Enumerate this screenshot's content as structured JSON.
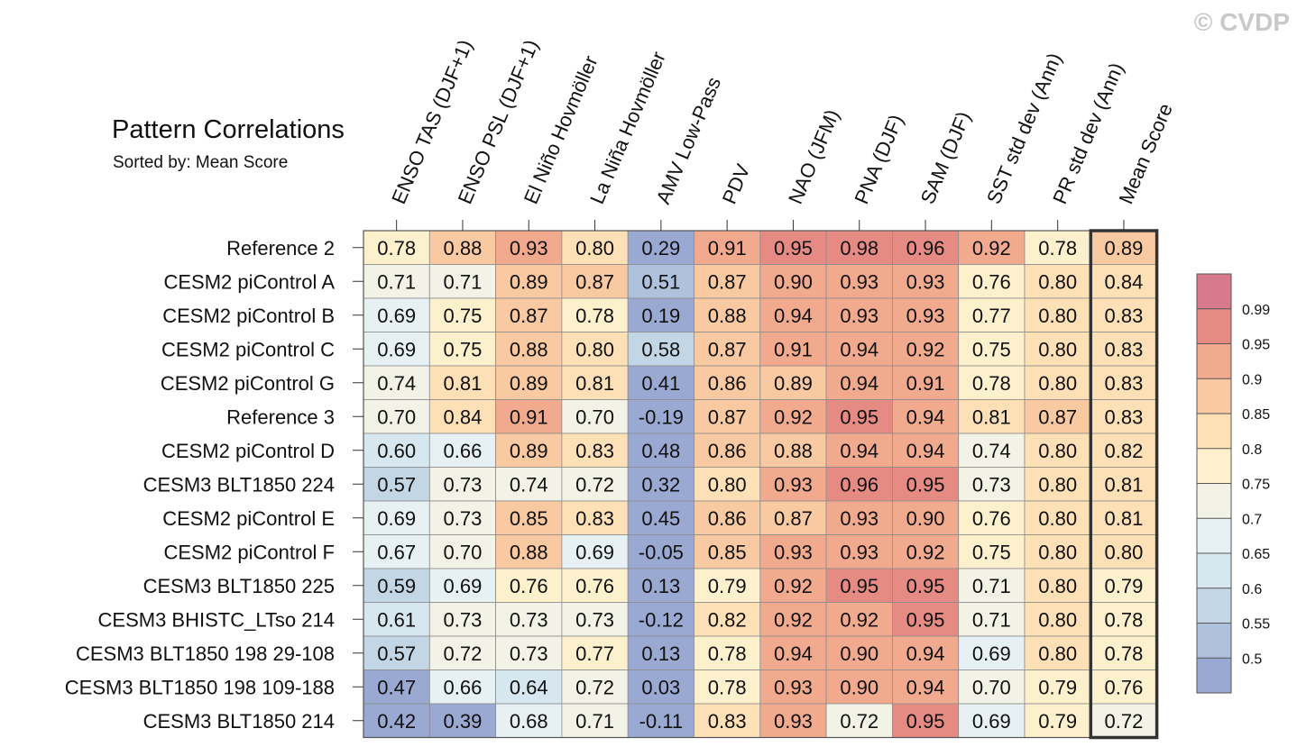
{
  "watermark": "© CVDP",
  "title": "Pattern Correlations",
  "subtitle": "Sorted by: Mean Score",
  "chart_data": {
    "type": "heatmap",
    "title": "Pattern Correlations",
    "subtitle": "Sorted by: Mean Score",
    "columns": [
      "ENSO TAS (DJF+1)",
      "ENSO PSL (DJF+1)",
      "El Niño Hovmöller",
      "La Niña Hovmöller",
      "AMV Low-Pass",
      "PDV",
      "NAO (JFM)",
      "PNA (DJF)",
      "SAM (DJF)",
      "SST std dev (Ann)",
      "PR std dev (Ann)",
      "Mean Score"
    ],
    "rows": [
      "Reference 2",
      "CESM2 piControl A",
      "CESM2 piControl B",
      "CESM2 piControl C",
      "CESM2 piControl G",
      "Reference 3",
      "CESM2 piControl D",
      "CESM3 BLT1850 224",
      "CESM2 piControl E",
      "CESM2 piControl F",
      "CESM3 BLT1850 225",
      "CESM3 BHISTC_LTso 214",
      "CESM3 BLT1850 198 29-108",
      "CESM3 BLT1850 198 109-188",
      "CESM3 BLT1850 214"
    ],
    "values": [
      [
        "0.78",
        "0.88",
        "0.93",
        "0.80",
        "0.29",
        "0.91",
        "0.95",
        "0.98",
        "0.96",
        "0.92",
        "0.78",
        "0.89"
      ],
      [
        "0.71",
        "0.71",
        "0.89",
        "0.87",
        "0.51",
        "0.87",
        "0.90",
        "0.93",
        "0.93",
        "0.76",
        "0.80",
        "0.84"
      ],
      [
        "0.69",
        "0.75",
        "0.87",
        "0.78",
        "0.19",
        "0.88",
        "0.94",
        "0.93",
        "0.93",
        "0.77",
        "0.80",
        "0.83"
      ],
      [
        "0.69",
        "0.75",
        "0.88",
        "0.80",
        "0.58",
        "0.87",
        "0.91",
        "0.94",
        "0.92",
        "0.75",
        "0.80",
        "0.83"
      ],
      [
        "0.74",
        "0.81",
        "0.89",
        "0.81",
        "0.41",
        "0.86",
        "0.89",
        "0.94",
        "0.91",
        "0.78",
        "0.80",
        "0.83"
      ],
      [
        "0.70",
        "0.84",
        "0.91",
        "0.70",
        "-0.19",
        "0.87",
        "0.92",
        "0.95",
        "0.94",
        "0.81",
        "0.87",
        "0.83"
      ],
      [
        "0.60",
        "0.66",
        "0.89",
        "0.83",
        "0.48",
        "0.86",
        "0.88",
        "0.94",
        "0.94",
        "0.74",
        "0.80",
        "0.82"
      ],
      [
        "0.57",
        "0.73",
        "0.74",
        "0.72",
        "0.32",
        "0.80",
        "0.93",
        "0.96",
        "0.95",
        "0.73",
        "0.80",
        "0.81"
      ],
      [
        "0.69",
        "0.73",
        "0.85",
        "0.83",
        "0.45",
        "0.86",
        "0.87",
        "0.93",
        "0.90",
        "0.76",
        "0.80",
        "0.81"
      ],
      [
        "0.67",
        "0.70",
        "0.88",
        "0.69",
        "-0.05",
        "0.85",
        "0.93",
        "0.93",
        "0.92",
        "0.75",
        "0.80",
        "0.80"
      ],
      [
        "0.59",
        "0.69",
        "0.76",
        "0.76",
        "0.13",
        "0.79",
        "0.92",
        "0.95",
        "0.95",
        "0.71",
        "0.80",
        "0.79"
      ],
      [
        "0.61",
        "0.73",
        "0.73",
        "0.73",
        "-0.12",
        "0.82",
        "0.92",
        "0.92",
        "0.95",
        "0.71",
        "0.80",
        "0.78"
      ],
      [
        "0.57",
        "0.72",
        "0.73",
        "0.77",
        "0.13",
        "0.78",
        "0.94",
        "0.90",
        "0.94",
        "0.69",
        "0.80",
        "0.78"
      ],
      [
        "0.47",
        "0.66",
        "0.64",
        "0.72",
        "0.03",
        "0.78",
        "0.93",
        "0.90",
        "0.94",
        "0.70",
        "0.79",
        "0.76"
      ],
      [
        "0.42",
        "0.39",
        "0.68",
        "0.71",
        "-0.11",
        "0.83",
        "0.93",
        "0.72",
        "0.95",
        "0.69",
        "0.79",
        "0.72"
      ]
    ],
    "colorbar": {
      "levels": [
        0.5,
        0.55,
        0.6,
        0.65,
        0.7,
        0.75,
        0.8,
        0.85,
        0.9,
        0.95,
        0.99
      ],
      "labels": [
        "0.5",
        "0.55",
        "0.6",
        "0.65",
        "0.7",
        "0.75",
        "0.8",
        "0.85",
        "0.9",
        "0.95",
        "0.99"
      ],
      "colors": [
        "#9aa9d2",
        "#aec2dd",
        "#c2d6e6",
        "#d6e7ef",
        "#e7f1f3",
        "#f2f2e6",
        "#fdf0cd",
        "#fde0b6",
        "#f9c9a1",
        "#f2aa8e",
        "#e68b84",
        "#d67a8c"
      ]
    },
    "highlighted_column": "Mean Score"
  }
}
